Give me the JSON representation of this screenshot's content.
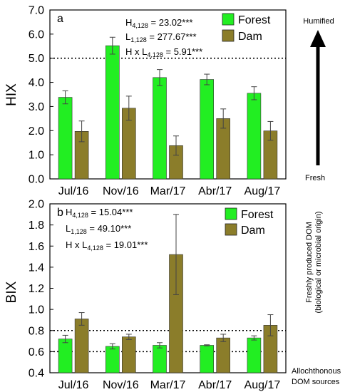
{
  "chart_data": [
    {
      "type": "bar",
      "panel_label": "a",
      "ylabel": "HIX",
      "ylim": [
        0,
        7
      ],
      "yticks": [
        "0.0",
        "1.0",
        "2.0",
        "3.0",
        "4.0",
        "5.0",
        "6.0",
        "7.0"
      ],
      "categories": [
        "Jul/16",
        "Nov/16",
        "Mar/17",
        "Abr/17",
        "Aug/17"
      ],
      "series": [
        {
          "name": "Forest",
          "color": "#22ee22",
          "values": [
            3.38,
            5.52,
            4.2,
            4.12,
            3.55
          ],
          "errors": [
            0.27,
            0.35,
            0.33,
            0.22,
            0.27
          ]
        },
        {
          "name": "Dam",
          "color": "#8b7d2a",
          "values": [
            1.97,
            2.93,
            1.38,
            2.5,
            1.99
          ],
          "errors": [
            0.43,
            0.5,
            0.4,
            0.4,
            0.39
          ]
        }
      ],
      "reference_lines": [
        5.0
      ],
      "stats": [
        {
          "prefix": "H",
          "sub": "4,128",
          "text": " = 23.02***"
        },
        {
          "prefix": "L",
          "sub": "1,128",
          "text": " = 277.67***"
        },
        {
          "prefix": "H x L",
          "sub": "4,128",
          "text": " = 5.91***"
        }
      ],
      "annotations": {
        "top": "Humified",
        "bottom": "Fresh"
      },
      "grid": false,
      "legend": "top-right"
    },
    {
      "type": "bar",
      "panel_label": "b",
      "ylabel": "BIX",
      "ylim": [
        0.4,
        2.0
      ],
      "yticks": [
        "0.4",
        "0.6",
        "0.8",
        "1.0",
        "1.2",
        "1.4",
        "1.6",
        "1.8",
        "2.0"
      ],
      "categories": [
        "Jul/16",
        "Nov/16",
        "Mar/17",
        "Abr/17",
        "Aug/17"
      ],
      "series": [
        {
          "name": "Forest",
          "color": "#22ee22",
          "values": [
            0.72,
            0.65,
            0.66,
            0.66,
            0.73
          ],
          "errors": [
            0.035,
            0.025,
            0.025,
            0.005,
            0.02
          ]
        },
        {
          "name": "Dam",
          "color": "#8b7d2a",
          "values": [
            0.91,
            0.74,
            1.52,
            0.73,
            0.85
          ],
          "errors": [
            0.06,
            0.025,
            0.38,
            0.035,
            0.1
          ]
        }
      ],
      "reference_lines": [
        0.6,
        0.8
      ],
      "stats": [
        {
          "prefix": "H",
          "sub": "4,128",
          "text": " = 15.04***"
        },
        {
          "prefix": "L",
          "sub": "1,128",
          "text": " = 49.10***"
        },
        {
          "prefix": "H x L",
          "sub": "4,128",
          "text": " = 19.01***"
        }
      ],
      "annotations": {
        "top_line1": "Freshly produced DOM",
        "top_line2": "(biological or microbial origin)",
        "bottom_line1": "Allochthonous",
        "bottom_line2": "DOM sources"
      },
      "grid": false,
      "legend": "top-right"
    }
  ]
}
